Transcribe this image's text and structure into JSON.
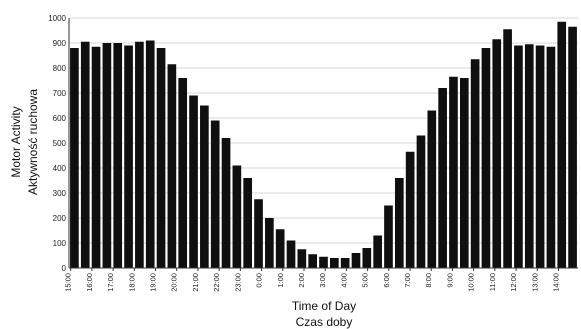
{
  "chart_data": {
    "type": "bar",
    "title": "",
    "xlabel": [
      "Time of Day",
      "Czas doby"
    ],
    "ylabel": [
      "Motor Activity",
      "Aktywność ruchowa"
    ],
    "ylim": [
      0,
      1000
    ],
    "y_ticks": [
      0,
      100,
      200,
      300,
      400,
      500,
      600,
      700,
      800,
      900,
      1000
    ],
    "grid": true,
    "legend": "none",
    "x_tick_labels": [
      "15:00",
      "16:00",
      "17:00",
      "18:00",
      "19:00",
      "20:00",
      "21:00",
      "22:00",
      "23:00",
      "0:00",
      "1:00",
      "2:00",
      "3:00",
      "4:00",
      "5:00",
      "6:00",
      "7:00",
      "8:00",
      "9:00",
      "10:00",
      "11:00",
      "12:00",
      "13:00",
      "14:00"
    ],
    "values": [
      880,
      905,
      885,
      900,
      900,
      890,
      905,
      910,
      880,
      815,
      760,
      690,
      650,
      590,
      520,
      410,
      360,
      275,
      200,
      155,
      110,
      75,
      55,
      45,
      40,
      40,
      60,
      80,
      130,
      250,
      360,
      465,
      530,
      630,
      720,
      765,
      760,
      835,
      880,
      915,
      955,
      890,
      895,
      890,
      885,
      985,
      965
    ]
  },
  "colors": {
    "bar": "#0f0f0f",
    "grid": "#d7d7d7",
    "axis": "#333333"
  }
}
